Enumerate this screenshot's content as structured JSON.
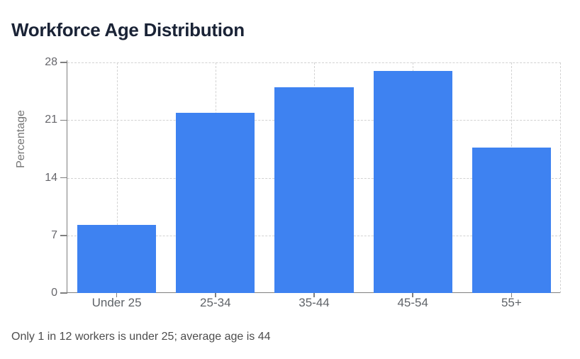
{
  "title": "Workforce Age Distribution",
  "caption": "Only 1 in 12 workers is under 25; average age is 44",
  "chart_data": {
    "type": "bar",
    "categories": [
      "Under 25",
      "25-34",
      "35-44",
      "45-54",
      "55+"
    ],
    "values": [
      8.3,
      21.9,
      25,
      27,
      17.7
    ],
    "title": "Workforce Age Distribution",
    "xlabel": "",
    "ylabel": "Percentage",
    "ylim": [
      0,
      28
    ],
    "yticks": [
      0,
      7,
      14,
      21,
      28
    ],
    "grid": true,
    "grid_style": "dashed",
    "legend": false,
    "bar_width_fraction": 0.8,
    "annotation": "Only 1 in 12 workers is under 25; average age is 44"
  },
  "colors": {
    "background": "#ffffff",
    "bar": "#3e82f1",
    "title_text": "#1a2336",
    "axis_line": "#7f7f7f",
    "grid_line": "#d2d2d2",
    "tick_text": "#66666b",
    "x_tick_text": "#5f6368",
    "axis_title_text": "#757575",
    "caption_text": "#4d4d4d"
  }
}
